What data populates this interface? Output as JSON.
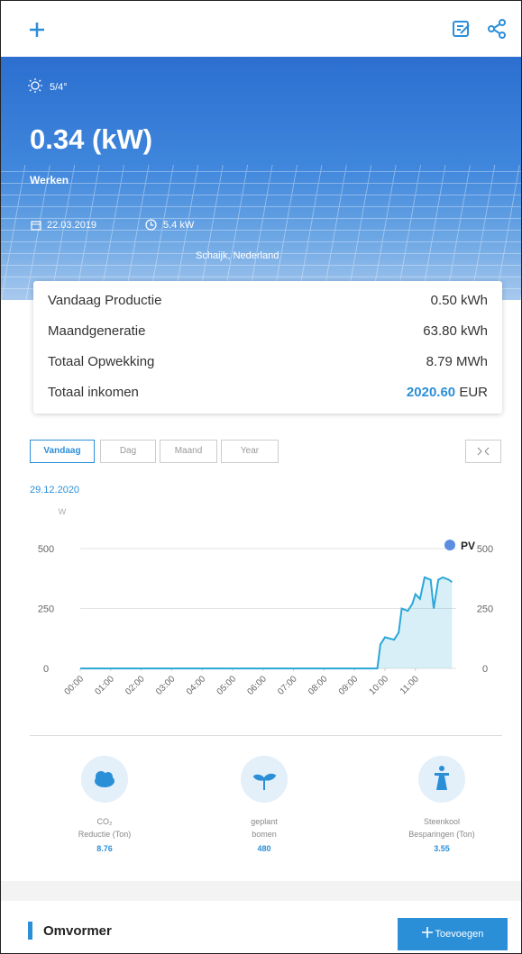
{
  "hero": {
    "weather": "5/4°",
    "power": "0.34 (kW)",
    "status": "Werken",
    "date": "22.03.2019",
    "capacity": "5.4 kW",
    "location": "Schaijk, Nederland"
  },
  "stats": [
    {
      "label": "Vandaag Productie",
      "value": "0.50 kWh"
    },
    {
      "label": "Maandgeneratie",
      "value": "63.80 kWh"
    },
    {
      "label": "Totaal Opwekking",
      "value": "8.79 MWh"
    },
    {
      "label": "Totaal inkomen",
      "value": "2020.60",
      "unit": "EUR"
    }
  ],
  "tabs": [
    "Vandaag",
    "Dag",
    "Maand",
    "Year"
  ],
  "selected_date": "29.12.2020",
  "chart_data": {
    "type": "area",
    "y_unit": "W",
    "x": [
      0,
      9.75,
      9.85,
      10.0,
      10.3,
      10.45,
      10.55,
      10.75,
      10.9,
      11.0,
      11.15,
      11.3,
      11.5,
      11.6,
      11.75,
      11.9,
      12.1,
      12.2
    ],
    "series": [
      {
        "name": "PV",
        "color": "#2ba7d8",
        "values": [
          0,
          0,
          100,
          130,
          120,
          150,
          250,
          240,
          270,
          310,
          290,
          380,
          370,
          250,
          370,
          380,
          370,
          360
        ]
      }
    ],
    "xlim": [
      0,
      12.3
    ],
    "xticks": [
      {
        "value": 0,
        "label": "00:00"
      },
      {
        "value": 1,
        "label": "01:00"
      },
      {
        "value": 2,
        "label": "02:00"
      },
      {
        "value": 3,
        "label": "03:00"
      },
      {
        "value": 4,
        "label": "04:00"
      },
      {
        "value": 5,
        "label": "05:00"
      },
      {
        "value": 6,
        "label": "06:00"
      },
      {
        "value": 7,
        "label": "07:00"
      },
      {
        "value": 8,
        "label": "08:00"
      },
      {
        "value": 9,
        "label": "09:00"
      },
      {
        "value": 10,
        "label": "10:00"
      },
      {
        "value": 11,
        "label": "11:00"
      }
    ],
    "ylim": [
      0,
      500
    ],
    "yticks": [
      0,
      250,
      500
    ],
    "grid": true
  },
  "environment": [
    {
      "label": [
        "CO₂",
        "Reductie (Ton)"
      ],
      "value": "8.76"
    },
    {
      "label": [
        "geplant",
        "bomen"
      ],
      "value": "480"
    },
    {
      "label": [
        "Steenkool",
        "Besparingen (Ton)"
      ],
      "value": "3.55"
    }
  ],
  "section": {
    "title": "Omvormer",
    "button": "Toevoegen"
  }
}
